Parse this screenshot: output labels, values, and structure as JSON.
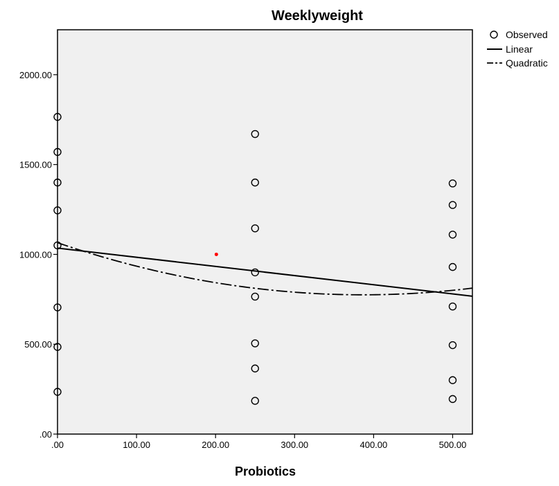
{
  "chart_data": {
    "type": "scatter",
    "title": "Weeklyweight",
    "xlabel": "Probiotics",
    "ylabel": "",
    "xlim": [
      0,
      525
    ],
    "ylim": [
      0,
      2250
    ],
    "x_ticks": [
      0,
      100,
      200,
      300,
      400,
      500
    ],
    "x_tick_labels": [
      ".00",
      "100.00",
      "200.00",
      "300.00",
      "400.00",
      "500.00"
    ],
    "y_ticks": [
      0,
      500,
      1000,
      1500,
      2000
    ],
    "y_tick_labels": [
      ".00",
      "500.00",
      "1000.00",
      "1500.00",
      "2000.00"
    ],
    "grid": false,
    "legend_position": "right",
    "legend": [
      "Observed",
      "Linear",
      "Quadratic"
    ],
    "series": [
      {
        "name": "Observed",
        "points": [
          [
            0,
            1765
          ],
          [
            0,
            1570
          ],
          [
            0,
            1400
          ],
          [
            0,
            1245
          ],
          [
            0,
            1050
          ],
          [
            0,
            705
          ],
          [
            0,
            485
          ],
          [
            0,
            235
          ],
          [
            250,
            1670
          ],
          [
            250,
            1400
          ],
          [
            250,
            1145
          ],
          [
            250,
            900
          ],
          [
            250,
            765
          ],
          [
            250,
            505
          ],
          [
            250,
            365
          ],
          [
            250,
            185
          ],
          [
            500,
            1395
          ],
          [
            500,
            1275
          ],
          [
            500,
            1110
          ],
          [
            500,
            930
          ],
          [
            500,
            710
          ],
          [
            500,
            495
          ],
          [
            500,
            300
          ],
          [
            500,
            195
          ]
        ]
      },
      {
        "name": "Linear",
        "intercept": 1035,
        "slope": -0.51
      },
      {
        "name": "Quadratic",
        "a": 1065,
        "b": -1.5,
        "c": 0.00194
      }
    ],
    "annotation_point": [
      201,
      1000
    ],
    "colors": {
      "plot_background": "#f0f0f0",
      "marker_stroke": "#000000",
      "line": "#000000",
      "annotation_point": "#ff0000"
    }
  }
}
